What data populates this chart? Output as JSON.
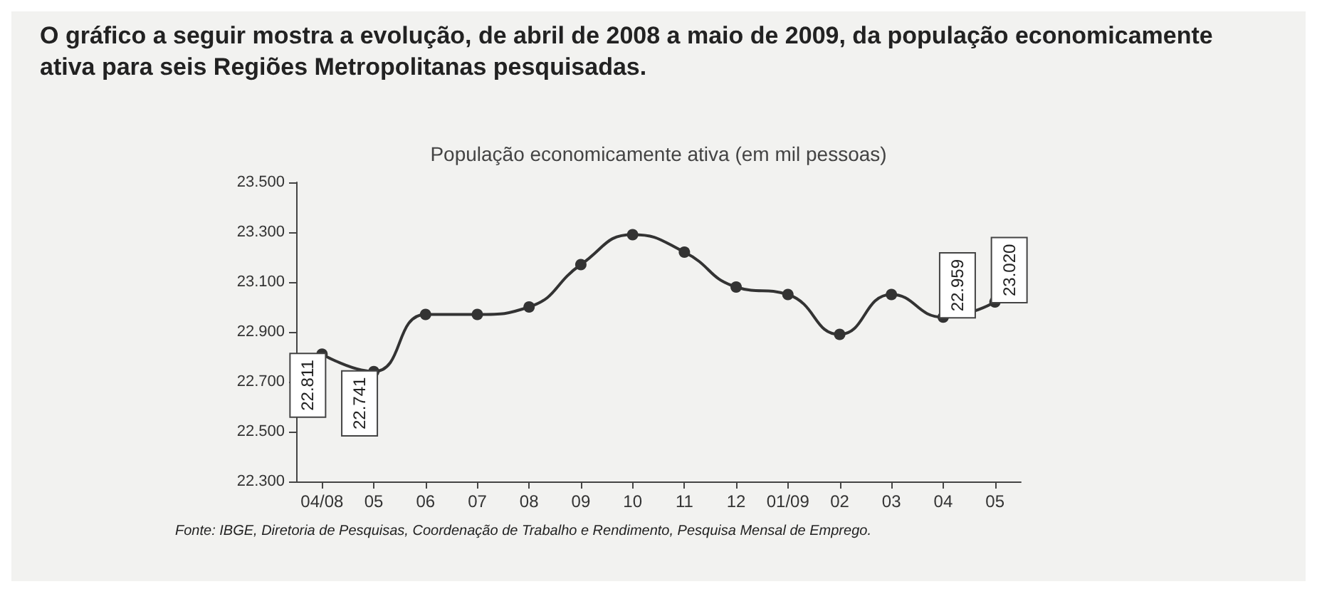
{
  "chart_data": {
    "type": "line",
    "title": "População economicamente ativa (em mil pessoas)",
    "annotations": [
      "O gráfico a seguir mostra a evolução, de abril de 2008 a maio de 2009, da população economicamente ativa para seis Regiões Metropolitanas pesquisadas.",
      "Fonte: IBGE, Diretoria de Pesquisas, Coordenação de Trabalho e Rendimento, Pesquisa Mensal de Emprego."
    ],
    "categories": [
      "04/08",
      "05",
      "06",
      "07",
      "08",
      "09",
      "10",
      "11",
      "12",
      "01/09",
      "02",
      "03",
      "04",
      "05"
    ],
    "series": [
      {
        "color": "#333333",
        "values": [
          22811,
          22741,
          22970,
          22970,
          23000,
          23170,
          23290,
          23220,
          23080,
          23050,
          22890,
          23050,
          22959,
          23020
        ],
        "value_labels": [
          "22.811",
          "22.741",
          null,
          null,
          null,
          null,
          null,
          null,
          null,
          null,
          null,
          null,
          "22.959",
          "23.020"
        ]
      }
    ],
    "ylim": [
      22300,
      23500
    ],
    "yticks": [
      {
        "value": 22300,
        "label": "22.300"
      },
      {
        "value": 22500,
        "label": "22.500"
      },
      {
        "value": 22700,
        "label": "22.700"
      },
      {
        "value": 22900,
        "label": "22.900"
      },
      {
        "value": 23100,
        "label": "23.100"
      },
      {
        "value": 23300,
        "label": "23.300"
      },
      {
        "value": 23500,
        "label": "23.500"
      }
    ],
    "grid": false,
    "marker": "circle",
    "line_style": "solid"
  }
}
